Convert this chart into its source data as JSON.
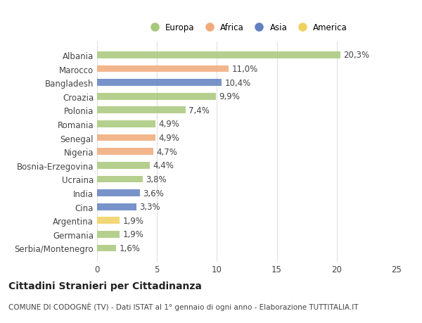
{
  "countries": [
    "Albania",
    "Marocco",
    "Bangladesh",
    "Croazia",
    "Polonia",
    "Romania",
    "Senegal",
    "Nigeria",
    "Bosnia-Erzegovina",
    "Ucraina",
    "India",
    "Cina",
    "Argentina",
    "Germania",
    "Serbia/Montenegro"
  ],
  "values": [
    20.3,
    11.0,
    10.4,
    9.9,
    7.4,
    4.9,
    4.9,
    4.7,
    4.4,
    3.8,
    3.6,
    3.3,
    1.9,
    1.9,
    1.6
  ],
  "labels": [
    "20,3%",
    "11,0%",
    "10,4%",
    "9,9%",
    "7,4%",
    "4,9%",
    "4,9%",
    "4,7%",
    "4,4%",
    "3,8%",
    "3,6%",
    "3,3%",
    "1,9%",
    "1,9%",
    "1,6%"
  ],
  "continents": [
    "Europa",
    "Africa",
    "Asia",
    "Europa",
    "Europa",
    "Europa",
    "Africa",
    "Africa",
    "Europa",
    "Europa",
    "Asia",
    "Asia",
    "America",
    "Europa",
    "Europa"
  ],
  "continent_colors": {
    "Europa": "#a8c87a",
    "Africa": "#f0aa78",
    "Asia": "#6080c0",
    "America": "#f0d060"
  },
  "legend_order": [
    "Europa",
    "Africa",
    "Asia",
    "America"
  ],
  "xlim": [
    0,
    25
  ],
  "xticks": [
    0,
    5,
    10,
    15,
    20,
    25
  ],
  "title": "Cittadini Stranieri per Cittadinanza",
  "subtitle": "COMUNE DI CODOGNÈ (TV) - Dati ISTAT al 1° gennaio di ogni anno - Elaborazione TUTTITALIA.IT",
  "background_color": "#ffffff",
  "bar_height": 0.5,
  "grid_color": "#e0e0e0",
  "text_color": "#444444",
  "label_fontsize": 8.5,
  "tick_fontsize": 8.5,
  "title_fontsize": 10,
  "subtitle_fontsize": 7.5
}
